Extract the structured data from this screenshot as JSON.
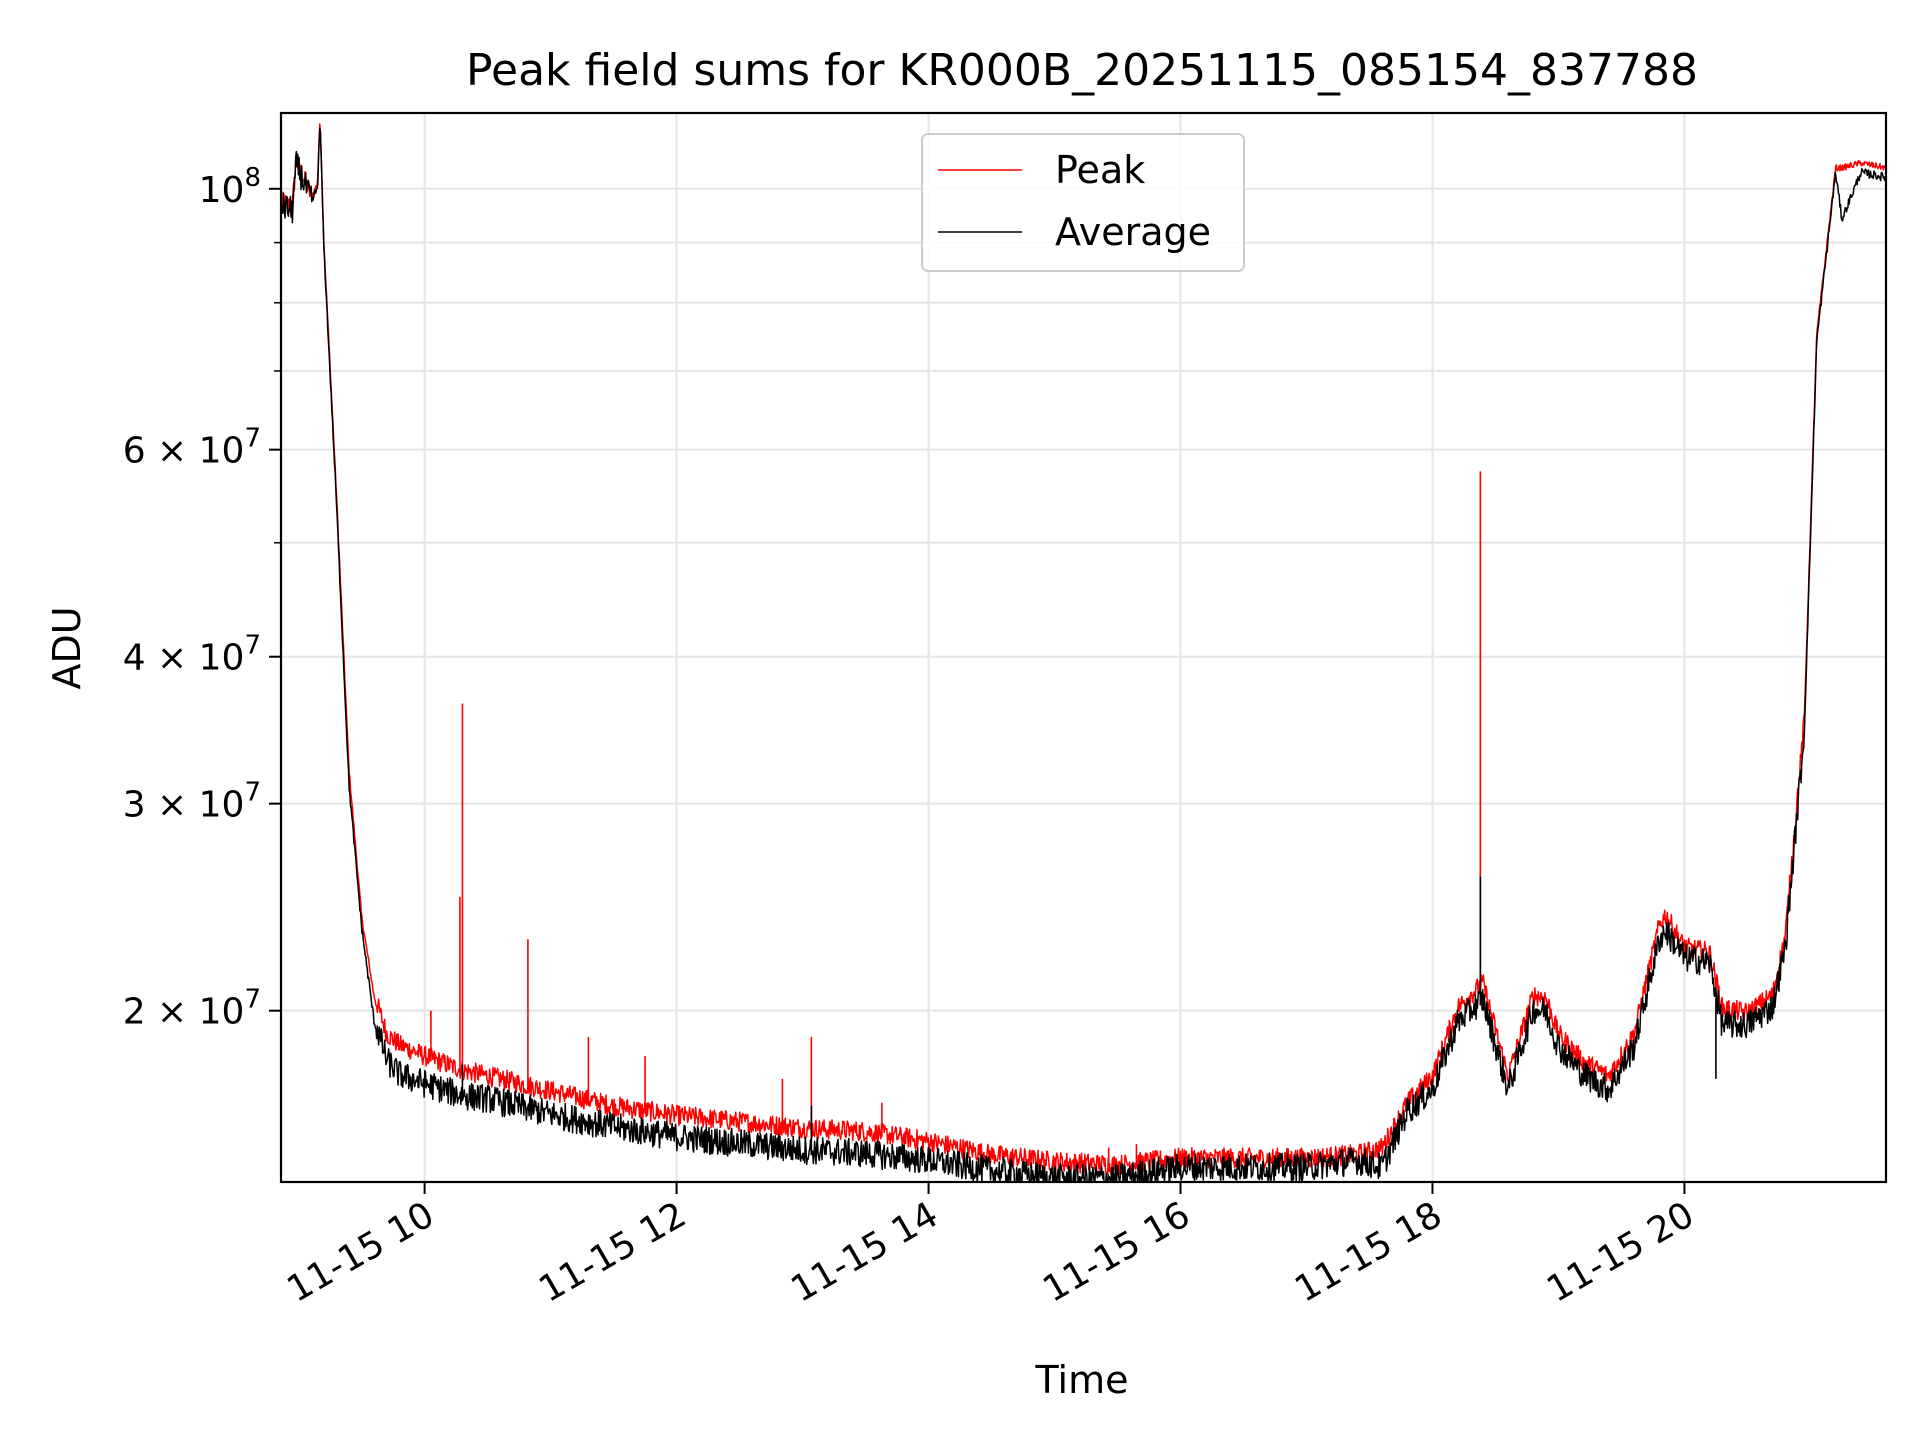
{
  "chart_data": {
    "type": "line",
    "title": "Peak field sums for KR000B_20251115_085154_837788",
    "xlabel": "Time",
    "ylabel": "ADU",
    "yscale": "log",
    "xlim_hours": [
      8.86,
      21.6
    ],
    "ylim": [
      14300000,
      116000000
    ],
    "grid": true,
    "legend_position": "upper center",
    "x_ticks": [
      {
        "value": 10,
        "label": "11-15 10"
      },
      {
        "value": 12,
        "label": "11-15 12"
      },
      {
        "value": 14,
        "label": "11-15 14"
      },
      {
        "value": 16,
        "label": "11-15 16"
      },
      {
        "value": 18,
        "label": "11-15 18"
      },
      {
        "value": 20,
        "label": "11-15 20"
      }
    ],
    "y_ticks": [
      {
        "value": 100000000,
        "base": "10",
        "exp": "8"
      },
      {
        "value": 60000000,
        "base": "6 × 10",
        "exp": "7"
      },
      {
        "value": 40000000,
        "base": "4 × 10",
        "exp": "7"
      },
      {
        "value": 30000000,
        "base": "3 × 10",
        "exp": "7"
      },
      {
        "value": 20000000,
        "base": "2 × 10",
        "exp": "7"
      }
    ],
    "y_minor_ticks": [
      50000000,
      70000000,
      80000000,
      90000000
    ],
    "series": [
      {
        "name": "Peak",
        "color": "#ff0000",
        "noise_amplitude": 0.02,
        "x": [
          8.86,
          8.95,
          8.98,
          9.0,
          9.1,
          9.15,
          9.17,
          9.2,
          9.3,
          9.4,
          9.5,
          9.6,
          9.7,
          9.8,
          10.0,
          10.3,
          10.5,
          11.0,
          11.5,
          12.0,
          12.5,
          13.0,
          13.5,
          14.0,
          14.5,
          15.0,
          15.5,
          16.0,
          16.5,
          17.0,
          17.4,
          17.6,
          17.8,
          18.0,
          18.2,
          18.4,
          18.6,
          18.8,
          18.9,
          19.0,
          19.2,
          19.4,
          19.6,
          19.8,
          19.85,
          20.0,
          20.2,
          20.3,
          20.5,
          20.7,
          20.8,
          20.95,
          21.05,
          21.2,
          21.25,
          21.4,
          21.6
        ],
        "y": [
          97000000,
          96000000,
          105000000,
          104000000,
          98000000,
          101000000,
          115000000,
          90000000,
          55000000,
          32000000,
          24000000,
          20500000,
          19000000,
          18600000,
          18200000,
          17700000,
          17500000,
          17000000,
          16500000,
          16200000,
          16000000,
          15800000,
          15700000,
          15400000,
          15000000,
          14800000,
          14700000,
          14900000,
          14900000,
          14900000,
          15000000,
          15200000,
          16600000,
          17500000,
          20000000,
          21000000,
          17500000,
          20500000,
          20400000,
          19000000,
          18000000,
          17500000,
          19000000,
          23500000,
          24000000,
          22500000,
          22300000,
          20000000,
          19800000,
          20500000,
          23000000,
          35000000,
          75000000,
          104000000,
          104000000,
          105000000,
          104000000
        ]
      },
      {
        "name": "Average",
        "color": "#000000",
        "noise_amplitude": 0.028,
        "x": [
          8.86,
          8.95,
          8.98,
          9.0,
          9.1,
          9.15,
          9.17,
          9.2,
          9.3,
          9.4,
          9.5,
          9.6,
          9.7,
          9.8,
          10.0,
          10.3,
          10.5,
          11.0,
          11.5,
          12.0,
          12.5,
          13.0,
          13.5,
          14.0,
          14.5,
          15.0,
          15.5,
          16.0,
          16.5,
          17.0,
          17.4,
          17.6,
          17.8,
          18.0,
          18.2,
          18.4,
          18.6,
          18.8,
          18.9,
          19.0,
          19.2,
          19.4,
          19.6,
          19.8,
          19.85,
          20.0,
          20.2,
          20.3,
          20.5,
          20.7,
          20.8,
          20.95,
          21.05,
          21.2,
          21.25,
          21.4,
          21.6
        ],
        "y": [
          96000000,
          95000000,
          104000000,
          103000000,
          97000000,
          100000000,
          114000000,
          89000000,
          54000000,
          31000000,
          23500000,
          19500000,
          18000000,
          17500000,
          17200000,
          16800000,
          16700000,
          16200000,
          15800000,
          15500000,
          15300000,
          15100000,
          15000000,
          14800000,
          14500000,
          14300000,
          14300000,
          14600000,
          14600000,
          14600000,
          14800000,
          14600000,
          16300000,
          17000000,
          19400000,
          20300000,
          17000000,
          19900000,
          19800000,
          18500000,
          17500000,
          17000000,
          18500000,
          22800000,
          23200000,
          22000000,
          21800000,
          19300000,
          19300000,
          20000000,
          22400000,
          34000000,
          74000000,
          103000000,
          94000000,
          103000000,
          102000000
        ]
      }
    ],
    "spikes": [
      {
        "series": "Peak",
        "x": 10.3,
        "y": 36500000
      },
      {
        "series": "Peak",
        "x": 10.28,
        "y": 25000000
      },
      {
        "series": "Peak",
        "x": 10.82,
        "y": 23000000
      },
      {
        "series": "Peak",
        "x": 10.05,
        "y": 20000000
      },
      {
        "series": "Peak",
        "x": 13.07,
        "y": 19000000
      },
      {
        "series": "Peak",
        "x": 12.84,
        "y": 17500000
      },
      {
        "series": "Peak",
        "x": 13.63,
        "y": 16700000
      },
      {
        "series": "Peak",
        "x": 11.3,
        "y": 19000000
      },
      {
        "series": "Peak",
        "x": 11.75,
        "y": 18300000
      },
      {
        "series": "Peak",
        "x": 15.43,
        "y": 15300000
      },
      {
        "series": "Peak",
        "x": 15.65,
        "y": 15400000
      },
      {
        "series": "Peak",
        "x": 18.38,
        "y": 57500000
      },
      {
        "series": "Average",
        "x": 18.38,
        "y": 26000000
      },
      {
        "series": "Average",
        "x": 10.3,
        "y": 18000000
      },
      {
        "series": "Average",
        "x": 13.07,
        "y": 16600000
      },
      {
        "series": "Peak",
        "x": 20.0,
        "y": 23000000
      },
      {
        "series": "Average",
        "x": 20.25,
        "y": 17500000
      }
    ]
  }
}
